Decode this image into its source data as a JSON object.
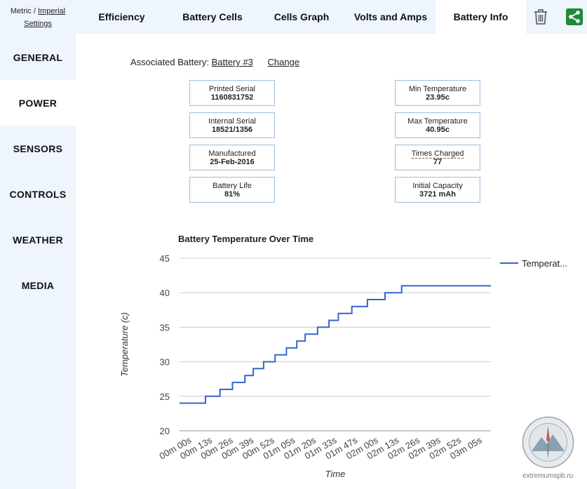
{
  "units": {
    "metric": "Metric",
    "separator": "/",
    "imperial": "Imperial",
    "settings": "Settings"
  },
  "sidebar": {
    "items": [
      {
        "label": "GENERAL"
      },
      {
        "label": "POWER",
        "active": true
      },
      {
        "label": "SENSORS"
      },
      {
        "label": "CONTROLS"
      },
      {
        "label": "WEATHER"
      },
      {
        "label": "MEDIA"
      }
    ]
  },
  "tabs": [
    {
      "label": "Efficiency"
    },
    {
      "label": "Battery Cells"
    },
    {
      "label": "Cells Graph"
    },
    {
      "label": "Volts and Amps"
    },
    {
      "label": "Battery Info",
      "active": true
    }
  ],
  "toolbar": {
    "delete_icon": "trash-icon",
    "share_icon": "share-icon",
    "share_color": "#1e8a3c"
  },
  "battery": {
    "associated_label": "Associated Battery:",
    "associated_value": "Battery #3",
    "change_label": "Change",
    "left_cards": [
      {
        "label": "Printed Serial",
        "value": "1160831752"
      },
      {
        "label": "Internal Serial",
        "value": "18521/1356"
      },
      {
        "label": "Manufactured",
        "value": "25-Feb-2016"
      },
      {
        "label": "Battery Life",
        "value": "81%"
      }
    ],
    "right_cards": [
      {
        "label": "Min Temperature",
        "value": "23.95c"
      },
      {
        "label": "Max Temperature",
        "value": "40.95c"
      },
      {
        "label": "Times Charged",
        "value": "77"
      },
      {
        "label": "Initial Capacity",
        "value": "3721 mAh"
      }
    ]
  },
  "chart_data": {
    "type": "line",
    "title": "Battery Temperature Over Time",
    "xlabel": "Time",
    "ylabel": "Temperature (c)",
    "ylim": [
      20,
      45
    ],
    "yticks": [
      20,
      25,
      30,
      35,
      40,
      45
    ],
    "categories": [
      "00m 00s",
      "00m 13s",
      "00m 26s",
      "00m 39s",
      "00m 52s",
      "01m 05s",
      "01m 20s",
      "01m 33s",
      "01m 47s",
      "02m 00s",
      "02m 13s",
      "02m 26s",
      "02m 39s",
      "02m 52s",
      "03m 05s"
    ],
    "series": [
      {
        "name": "Temperat...",
        "color": "#3366cc",
        "x": [
          0,
          2.5,
          2.5,
          3.9,
          3.9,
          5.1,
          5.1,
          6.3,
          6.3,
          7.1,
          7.1,
          8.1,
          8.1,
          9.2,
          9.2,
          10.3,
          10.3,
          11.3,
          11.3,
          12.1,
          12.1,
          13.3,
          13.3,
          14.4,
          14.4,
          15.3,
          15.3,
          16.6,
          16.6,
          18.1,
          18.1,
          19.8,
          19.8,
          21.4,
          21.4,
          23.3,
          23.3,
          25.4,
          25.4,
          27.3,
          27.3,
          29.1,
          29.1,
          30
        ],
        "y": [
          24,
          24,
          25,
          25,
          26,
          26,
          27,
          27,
          28,
          28,
          29,
          29,
          30,
          30,
          31,
          31,
          32,
          32,
          33,
          33,
          34,
          34,
          35,
          35,
          36,
          36,
          37,
          37,
          38,
          38,
          39,
          39,
          40,
          40,
          41,
          41,
          41,
          41,
          41,
          41,
          41,
          41,
          41,
          41
        ]
      }
    ]
  },
  "watermark": {
    "text": "extremumspb.ru"
  }
}
